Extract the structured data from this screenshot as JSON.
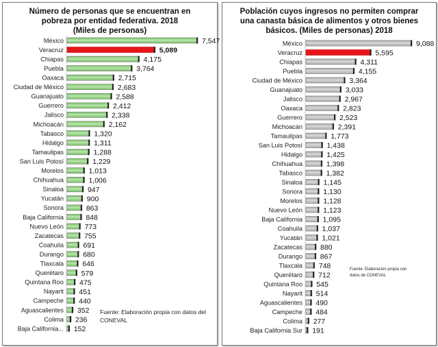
{
  "chart_data": [
    {
      "type": "bar",
      "orientation": "horizontal",
      "title": "Número de personas que se encuentran en pobreza por entidad federativa. 2018 (Miles de personas)",
      "title_lines": [
        "Número de personas que se encuentran en",
        "pobreza por entidad federativa. 2018",
        "(Miles de personas)"
      ],
      "note": "Fuente: Elaboración propia con datos del CONEVAL",
      "bar_color": "#8fd17e",
      "highlight_color": "#e8161b",
      "highlight": "Veracruz",
      "grid": false,
      "categories": [
        "México",
        "Veracruz",
        "Chiapas",
        "Puebla",
        "Oaxaca",
        "Ciudad de México",
        "Guanajuato",
        "Guerrero",
        "Jalisco",
        "Michoacán",
        "Tabasco",
        "Hidalgo",
        "Tamaulipas",
        "San Luis Potosí",
        "Morelos",
        "Chihuahua",
        "Sinaloa",
        "Yucatán",
        "Sonora",
        "Baja California",
        "Nuevo León",
        "Zacatecas",
        "Coahuila",
        "Durango",
        "Tlaxcala",
        "Querétaro",
        "Quintana Roo",
        "Nayarit",
        "Campeche",
        "Aguascalientes",
        "Colima",
        "Baja California..."
      ],
      "values": [
        7547,
        5089,
        4175,
        3764,
        2715,
        2683,
        2588,
        2412,
        2338,
        2162,
        1320,
        1311,
        1288,
        1229,
        1013,
        1006,
        947,
        900,
        863,
        848,
        773,
        755,
        691,
        680,
        646,
        579,
        475,
        451,
        440,
        352,
        236,
        152
      ],
      "value_labels": [
        "7,547",
        "5,089",
        "4,175",
        "3,764",
        "2,715",
        "2,683",
        "2,588",
        "2,412",
        "2,338",
        "2,162",
        "1,320",
        "1,311",
        "1,288",
        "1,229",
        "1,013",
        "1,006",
        "947",
        "900",
        "863",
        "848",
        "773",
        "755",
        "691",
        "680",
        "646",
        "579",
        "475",
        "451",
        "440",
        "352",
        "236",
        "152"
      ]
    },
    {
      "type": "bar",
      "orientation": "horizontal",
      "title": "Población cuyos ingresos no permiten comprar una canasta básica de alimentos y otros bienes básicos. (Miles de personas) 2018",
      "title_lines": [
        "Población cuyos ingresos no permiten comprar",
        "una canasta básica de alimentos y otros bienes",
        "básicos. (Miles de personas) 2018"
      ],
      "note": "Fuente: Elaboración propia con datos de CONEVAL",
      "bar_color": "#bdbdbd",
      "highlight_color": "#e8161b",
      "highlight": "Veracruz",
      "grid": false,
      "categories": [
        "México",
        "Veracruz",
        "Chiapas",
        "Puebla",
        "Ciudad de México",
        "Guanajuato",
        "Jalisco",
        "Oaxaca",
        "Guerrero",
        "Michoacán",
        "Tamaulipas",
        "San Luis Potosí",
        "Hidalgo",
        "Chihuahua",
        "Tabasco",
        "Sinaloa",
        "Sonora",
        "Morelos",
        "Nuevo León",
        "Baja California",
        "Coahuila",
        "Yucatán",
        "Zacatecas",
        "Durango",
        "Tlaxcala",
        "Querétaro",
        "Quintana Roo",
        "Nayarit",
        "Aguascalientes",
        "Campeche",
        "Colima",
        "Baja California Sur"
      ],
      "values": [
        9088,
        5595,
        4311,
        4155,
        3364,
        3033,
        2967,
        2823,
        2523,
        2391,
        1773,
        1438,
        1425,
        1398,
        1382,
        1145,
        1130,
        1128,
        1123,
        1095,
        1037,
        1021,
        880,
        867,
        748,
        712,
        545,
        514,
        490,
        484,
        277,
        191
      ],
      "value_labels": [
        "9,088",
        "5,595",
        "4,311",
        "4,155",
        "3,364",
        "3,033",
        "2,967",
        "2,823",
        "2,523",
        "2,391",
        "1,773",
        "1,438",
        "1,425",
        "1,398",
        "1,382",
        "1,145",
        "1,130",
        "1,128",
        "1,123",
        "1,095",
        "1,037",
        "1,021",
        "880",
        "867",
        "748",
        "712",
        "545",
        "514",
        "490",
        "484",
        "277",
        "191"
      ]
    }
  ]
}
